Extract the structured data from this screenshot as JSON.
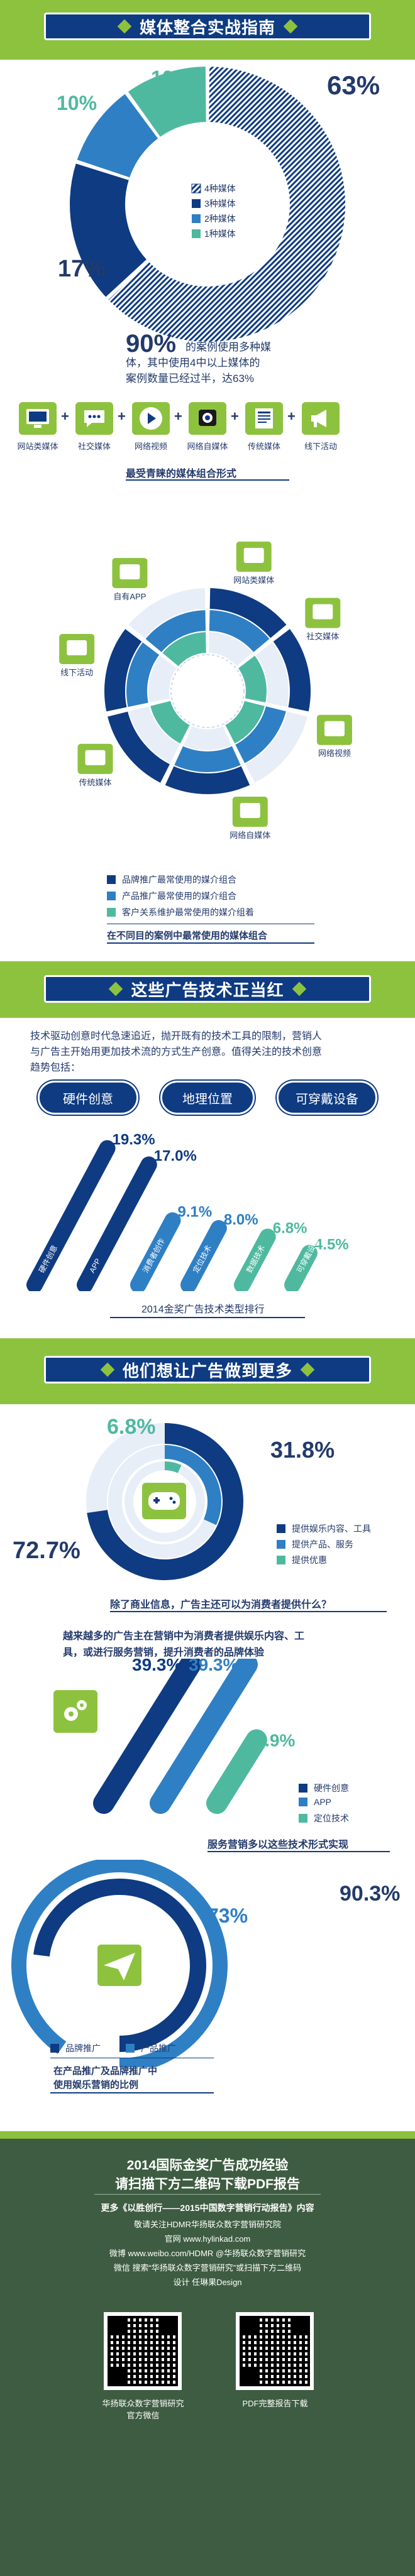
{
  "section1": {
    "title": "媒体整合实战指南",
    "donut": {
      "values": [
        63,
        17,
        10,
        10
      ],
      "labels": [
        "63%",
        "17%",
        "10%",
        "10%"
      ],
      "legend": [
        "4种媒体",
        "3种媒体",
        "2种媒体",
        "1种媒体"
      ]
    },
    "stat_number": "90%",
    "stat_text_1": "的案例使用多种媒",
    "stat_text_2": "体，其中使用4中以上媒体的",
    "stat_text_3": "案例数量已经过半，达63%",
    "icons": [
      "网站类媒体",
      "社交媒体",
      "网络视频",
      "网络自媒体",
      "传统媒体",
      "线下活动"
    ],
    "icons_caption": "最受青睐的媒体组合形式",
    "radial_labels": [
      "网站类媒体",
      "社交媒体",
      "网络视频",
      "网络自媒体",
      "传统媒体",
      "线下活动",
      "自有APP"
    ],
    "radial_legend": [
      "品牌推广最常使用的媒介组合",
      "产品推广最常使用的媒介组合",
      "客户关系维护最常使用的媒介组着"
    ],
    "radial_caption": "在不同目的案例中最常使用的媒体组合"
  },
  "section2": {
    "title": "这些广告技术正当红",
    "intro_1": "技术驱动创意时代急速追近，抛开既有的技术工具的限制，营销人",
    "intro_2": "与广告主开始用更加技术流的方式生产创意。值得关注的技术创意",
    "intro_3": "趋势包括：",
    "pills": [
      "硬件创意",
      "地理位置",
      "可穿戴设备"
    ],
    "chart_caption": "2014金奖广告技术类型排行"
  },
  "chart_data": [
    {
      "type": "bar",
      "categories": [
        "硬件创意",
        "APP",
        "消费者创作",
        "定位技术",
        "数据技术",
        "可穿戴设备"
      ],
      "values": [
        19.3,
        17.0,
        9.1,
        8.0,
        6.8,
        4.5
      ],
      "labels": [
        "19.3%",
        "17.0%",
        "9.1%",
        "8.0%",
        "6.8%",
        "4.5%"
      ],
      "title": "2014金奖广告技术类型排行"
    },
    {
      "type": "pie",
      "categories": [
        "提供娱乐内容、工具",
        "提供产品、服务",
        "提供优惠"
      ],
      "values": [
        72.7,
        31.8,
        6.8
      ],
      "labels": [
        "72.7%",
        "31.8%",
        "6.8%"
      ],
      "title": "除了商业信息，广告主还可以为消费者提供什么？"
    },
    {
      "type": "bar",
      "categories": [
        "硬件创意",
        "APP",
        "定位技术"
      ],
      "values": [
        39.3,
        39.3,
        17.9
      ],
      "labels": [
        "39.3%",
        "39.3%",
        "17.9%"
      ],
      "title": "服务营销多以这些技术形式实现"
    },
    {
      "type": "pie",
      "categories": [
        "品牌推广",
        "产品推广"
      ],
      "values": [
        73,
        90.3
      ],
      "labels": [
        "73%",
        "90.3%"
      ],
      "title": "在产品推广及品牌推广中使用娱乐营销的比例"
    }
  ],
  "section3": {
    "title": "他们想让广告做到更多",
    "ring_legend": [
      "提供娱乐内容、工具",
      "提供产品、服务",
      "提供优惠"
    ],
    "ring_caption": "除了商业信息，广告主还可以为消费者提供什么？",
    "text_1": "越来越多的广告主在营销中为消费者提供娱乐内容、工",
    "text_2": "具，或进行服务营销，提升消费者的品牌体验",
    "bars_legend": [
      "硬件创意",
      "APP",
      "定位技术"
    ],
    "bars_caption": "服务营销多以这些技术形式实现",
    "arc_legend": [
      "品牌推广",
      "产品推广"
    ],
    "arc_caption_1": "在产品推广及品牌推广中",
    "arc_caption_2": "使用娱乐营销的比例"
  },
  "footer": {
    "line1": "2014国际金奖广告成功经验",
    "line2": "请扫描下方二维码下载PDF报告",
    "line3": "更多《以胜创行——2015中国数字营销行动报告》内容",
    "line4": "敬请关注HDMR华扬联众数字营销研究院",
    "line5": "官网 www.hylinkad.com",
    "line6": "微博 www.weibo.com/HDMR @华扬联众数字营销研究",
    "line7": "微信 搜索“华扬联众数字营销研究”或扫描下方二维码",
    "line8": "设计 任琳果Design",
    "qr1_label_1": "华扬联众数字营销研究",
    "qr1_label_2": "官方微信",
    "qr2_label": "PDF完整报告下载"
  },
  "colors": {
    "navy": "#0e3b82",
    "blue": "#2f7fc4",
    "light_blue": "#5fb1d9",
    "teal": "#4fb9a0",
    "green": "#8dc23f",
    "footer": "#3e5c41"
  }
}
